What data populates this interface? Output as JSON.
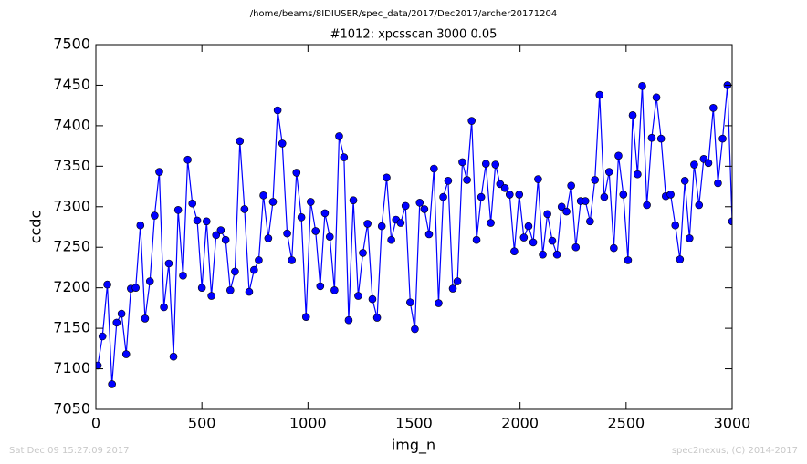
{
  "chart_data": {
    "type": "line",
    "suptitle": "/home/beams/8IDIUSER/spec_data/2017/Dec2017/archer20171204",
    "title": "#1012: xpcsscan 3000 0.05",
    "xlabel": "img_n",
    "ylabel": "ccdc",
    "footer_left": "Sat Dec 09 15:27:09 2017",
    "footer_right": "spec2nexus, (C) 2014-2017",
    "x": [
      9,
      31,
      54,
      76,
      98,
      121,
      143,
      165,
      188,
      210,
      232,
      255,
      277,
      299,
      321,
      344,
      366,
      388,
      411,
      433,
      455,
      478,
      500,
      522,
      545,
      567,
      589,
      612,
      634,
      656,
      679,
      701,
      723,
      746,
      768,
      790,
      813,
      835,
      857,
      879,
      902,
      924,
      946,
      969,
      991,
      1013,
      1036,
      1058,
      1080,
      1103,
      1125,
      1147,
      1170,
      1192,
      1214,
      1237,
      1259,
      1281,
      1304,
      1326,
      1348,
      1371,
      1393,
      1415,
      1437,
      1460,
      1482,
      1504,
      1527,
      1549,
      1571,
      1594,
      1616,
      1638,
      1661,
      1683,
      1705,
      1728,
      1750,
      1772,
      1795,
      1817,
      1839,
      1862,
      1884,
      1906,
      1929,
      1951,
      1973,
      1996,
      2018,
      2040,
      2062,
      2085,
      2107,
      2129,
      2152,
      2174,
      2196,
      2219,
      2241,
      2263,
      2286,
      2308,
      2330,
      2353,
      2375,
      2397,
      2420,
      2442,
      2464,
      2487,
      2509,
      2531,
      2554,
      2576,
      2598,
      2621,
      2643,
      2665,
      2687,
      2710,
      2732,
      2754,
      2777,
      2799,
      2821,
      2844,
      2866,
      2888,
      2911,
      2933,
      2955,
      2978,
      3000
    ],
    "series": [
      {
        "color": "#0000ff",
        "marker_color": "#0000ff",
        "values": [
          7104,
          7140,
          7204,
          7081,
          7157,
          7168,
          7118,
          7199,
          7200,
          7277,
          7162,
          7208,
          7289,
          7343,
          7176,
          7230,
          7115,
          7296,
          7215,
          7358,
          7304,
          7283,
          7200,
          7282,
          7190,
          7265,
          7271,
          7259,
          7197,
          7220,
          7381,
          7297,
          7195,
          7222,
          7234,
          7314,
          7261,
          7306,
          7419,
          7378,
          7267,
          7234,
          7342,
          7287,
          7164,
          7306,
          7270,
          7202,
          7292,
          7263,
          7197,
          7387,
          7361,
          7160,
          7308,
          7190,
          7243,
          7279,
          7186,
          7163,
          7276,
          7336,
          7259,
          7284,
          7280,
          7301,
          7182,
          7149,
          7305,
          7297,
          7266,
          7347,
          7181,
          7312,
          7332,
          7199,
          7208,
          7355,
          7333,
          7406,
          7259,
          7312,
          7353,
          7280,
          7352,
          7328,
          7323,
          7315,
          7245,
          7315,
          7262,
          7276,
          7256,
          7334,
          7241,
          7291,
          7258,
          7241,
          7300,
          7294,
          7326,
          7250,
          7307,
          7307,
          7282,
          7333,
          7438,
          7312,
          7343,
          7249,
          7363,
          7315,
          7234,
          7413,
          7340,
          7449,
          7302,
          7385,
          7435,
          7384,
          7313,
          7315,
          7277,
          7235,
          7332,
          7261,
          7352,
          7302,
          7359,
          7354,
          7422,
          7329,
          7384,
          7450,
          7282
        ]
      }
    ],
    "xlim": [
      0,
      3000
    ],
    "xticks": [
      0,
      500,
      1000,
      1500,
      2000,
      2500,
      3000
    ],
    "ylim": [
      7050,
      7500
    ],
    "yticks": [
      7050,
      7100,
      7150,
      7200,
      7250,
      7300,
      7350,
      7400,
      7450,
      7500
    ],
    "grid": false
  }
}
